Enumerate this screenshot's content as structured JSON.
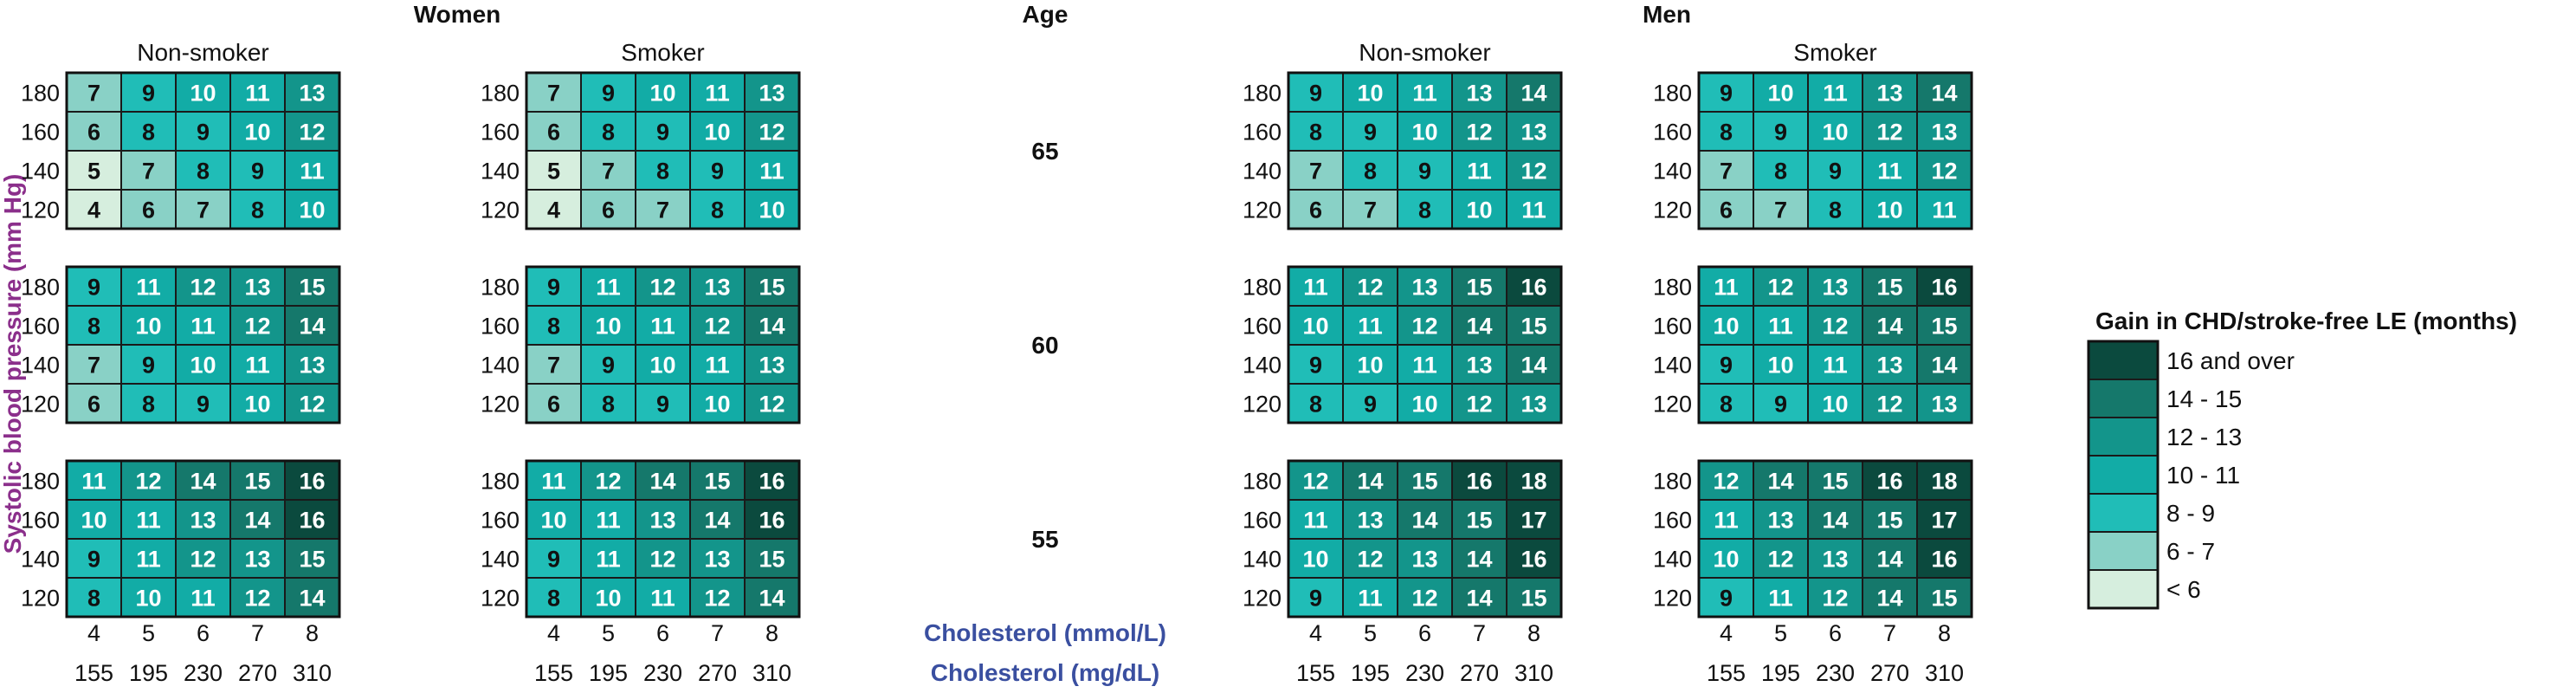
{
  "chart_data": {
    "type": "heatmap",
    "groups": {
      "women": "Women",
      "men": "Men"
    },
    "panel_labels": {
      "nonsmoker": "Non-smoker",
      "smoker": "Smoker"
    },
    "age_title": "Age",
    "ages": [
      "65",
      "60",
      "55"
    ],
    "y_axis_label": "Systolic blood pressure (mm Hg)",
    "sbp_levels": [
      "180",
      "160",
      "140",
      "120"
    ],
    "chol_mmol": [
      "4",
      "5",
      "6",
      "7",
      "8"
    ],
    "chol_mgdl": [
      "155",
      "195",
      "230",
      "270",
      "310"
    ],
    "x_axis_label_mmol": "Cholesterol (mmol/L)",
    "x_axis_label_mgdl": "Cholesterol (mg/dL)",
    "legend": {
      "title": "Gain in CHD/stroke-free LE (months)",
      "items": [
        {
          "label": "16 and over",
          "color": "#0b4a3e"
        },
        {
          "label": "14 - 15",
          "color": "#15786b"
        },
        {
          "label": "12 - 13",
          "color": "#13958b"
        },
        {
          "label": "10 - 11",
          "color": "#12aca6"
        },
        {
          "label": "8 - 9",
          "color": "#20bdb7"
        },
        {
          "label": "6 - 7",
          "color": "#89d1c6"
        },
        {
          "label": "< 6",
          "color": "#d6eede"
        }
      ]
    },
    "values": {
      "women": {
        "nonsmoker": [
          [
            [
              7,
              9,
              10,
              11,
              13
            ],
            [
              6,
              8,
              9,
              10,
              12
            ],
            [
              5,
              7,
              8,
              9,
              11
            ],
            [
              4,
              6,
              7,
              8,
              10
            ]
          ],
          [
            [
              9,
              11,
              12,
              13,
              15
            ],
            [
              8,
              10,
              11,
              12,
              14
            ],
            [
              7,
              9,
              10,
              11,
              13
            ],
            [
              6,
              8,
              9,
              10,
              12
            ]
          ],
          [
            [
              11,
              12,
              14,
              15,
              16
            ],
            [
              10,
              11,
              13,
              14,
              16
            ],
            [
              9,
              11,
              12,
              13,
              15
            ],
            [
              8,
              10,
              11,
              12,
              14
            ]
          ]
        ],
        "smoker": [
          [
            [
              7,
              9,
              10,
              11,
              13
            ],
            [
              6,
              8,
              9,
              10,
              12
            ],
            [
              5,
              7,
              8,
              9,
              11
            ],
            [
              4,
              6,
              7,
              8,
              10
            ]
          ],
          [
            [
              9,
              11,
              12,
              13,
              15
            ],
            [
              8,
              10,
              11,
              12,
              14
            ],
            [
              7,
              9,
              10,
              11,
              13
            ],
            [
              6,
              8,
              9,
              10,
              12
            ]
          ],
          [
            [
              11,
              12,
              14,
              15,
              16
            ],
            [
              10,
              11,
              13,
              14,
              16
            ],
            [
              9,
              11,
              12,
              13,
              15
            ],
            [
              8,
              10,
              11,
              12,
              14
            ]
          ]
        ]
      },
      "men": {
        "nonsmoker": [
          [
            [
              9,
              10,
              11,
              13,
              14
            ],
            [
              8,
              9,
              10,
              12,
              13
            ],
            [
              7,
              8,
              9,
              11,
              12
            ],
            [
              6,
              7,
              8,
              10,
              11
            ]
          ],
          [
            [
              11,
              12,
              13,
              15,
              16
            ],
            [
              10,
              11,
              12,
              14,
              15
            ],
            [
              9,
              10,
              11,
              13,
              14
            ],
            [
              8,
              9,
              10,
              12,
              13
            ]
          ],
          [
            [
              12,
              14,
              15,
              16,
              18
            ],
            [
              11,
              13,
              14,
              15,
              17
            ],
            [
              10,
              12,
              13,
              14,
              16
            ],
            [
              9,
              11,
              12,
              14,
              15
            ]
          ]
        ],
        "smoker": [
          [
            [
              9,
              10,
              11,
              13,
              14
            ],
            [
              8,
              9,
              10,
              12,
              13
            ],
            [
              7,
              8,
              9,
              11,
              12
            ],
            [
              6,
              7,
              8,
              10,
              11
            ]
          ],
          [
            [
              11,
              12,
              13,
              15,
              16
            ],
            [
              10,
              11,
              12,
              14,
              15
            ],
            [
              9,
              10,
              11,
              13,
              14
            ],
            [
              8,
              9,
              10,
              12,
              13
            ]
          ],
          [
            [
              12,
              14,
              15,
              16,
              18
            ],
            [
              11,
              13,
              14,
              15,
              17
            ],
            [
              10,
              12,
              13,
              14,
              16
            ],
            [
              9,
              11,
              12,
              14,
              15
            ]
          ]
        ]
      }
    }
  }
}
